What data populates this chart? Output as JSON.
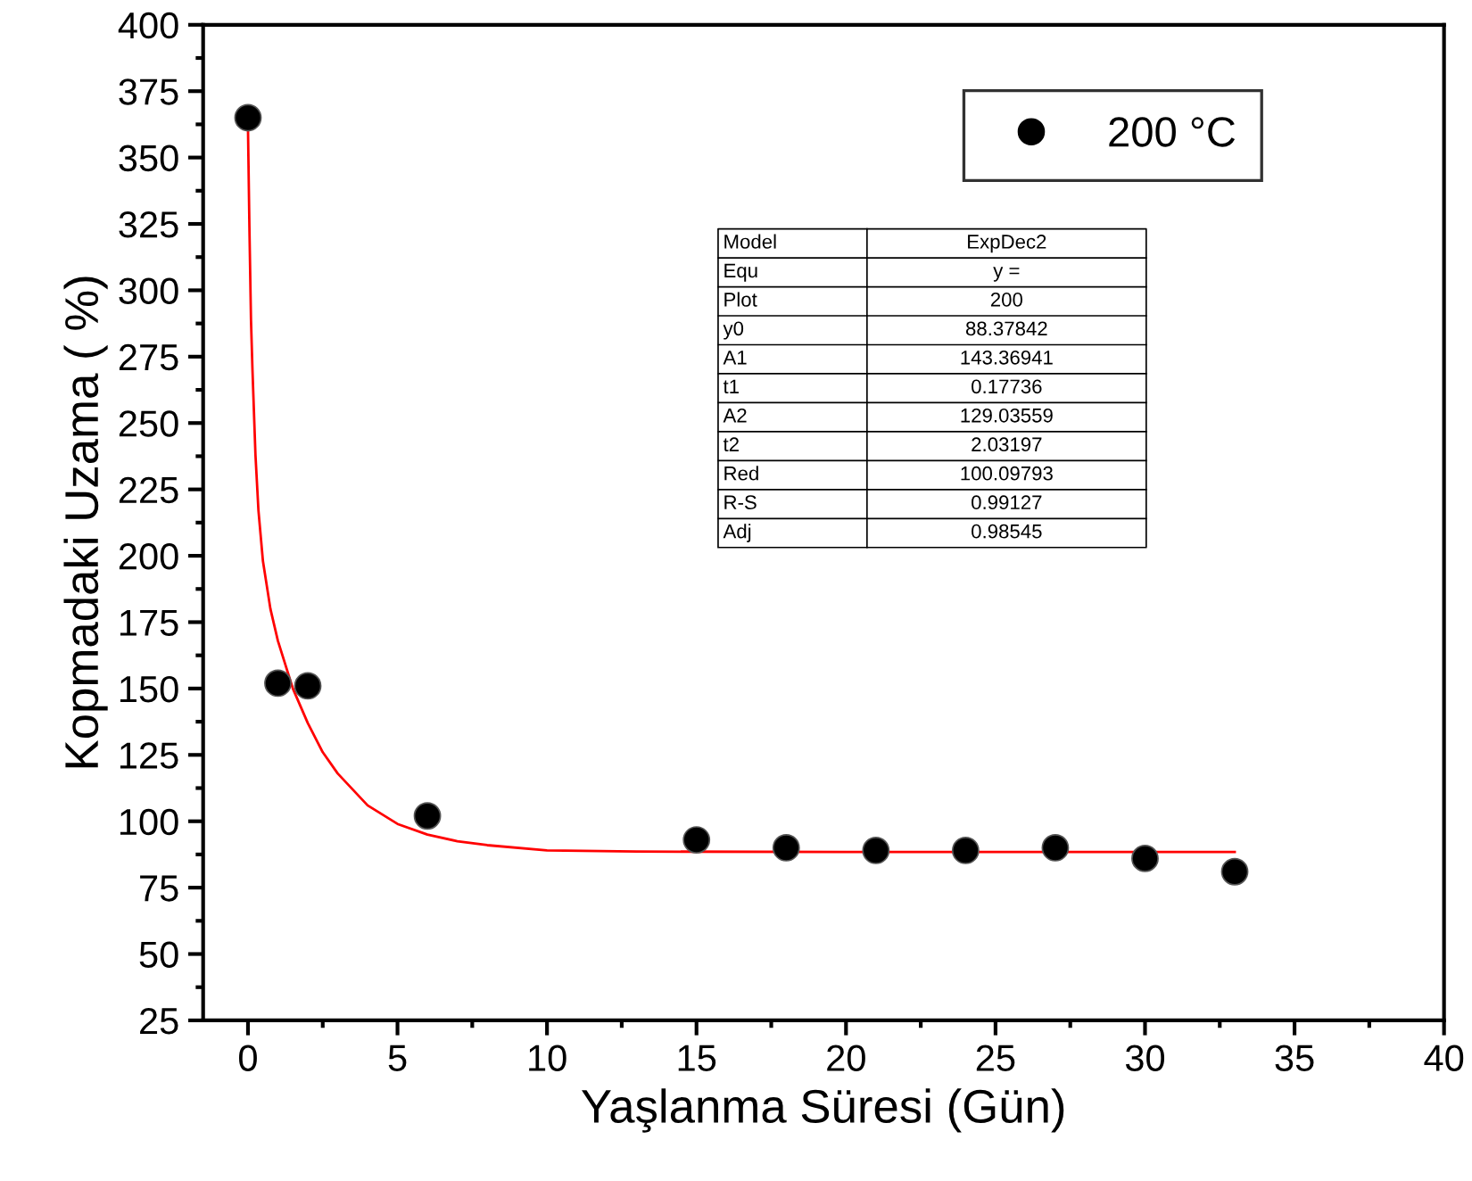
{
  "chart_data": {
    "type": "scatter",
    "xlabel": "Yaşlanma Süresi (Gün)",
    "ylabel": "Kopmadaki Uzama ( %)",
    "series": [
      {
        "name": "200 °C",
        "color": "#000000",
        "marker": "circle",
        "x": [
          0,
          1,
          2,
          6,
          15,
          18,
          21,
          24,
          27,
          30,
          33
        ],
        "values": [
          365,
          152,
          151,
          102,
          93,
          90,
          89,
          89,
          90,
          86,
          81
        ]
      },
      {
        "type": "line",
        "color": "#ff0000",
        "marker": "none",
        "line_style": "solid",
        "x": [
          0,
          0.05,
          0.1,
          0.15,
          0.25,
          0.35,
          0.5,
          0.75,
          1,
          1.5,
          2,
          2.5,
          3,
          4,
          5,
          6,
          7,
          8,
          10,
          13,
          20,
          33
        ],
        "values": [
          361,
          322,
          289,
          270,
          238,
          217,
          198,
          180,
          168,
          150,
          137,
          126,
          118,
          106,
          99,
          95,
          92.5,
          91,
          89,
          88.6,
          88.4,
          88.4
        ]
      }
    ],
    "xlim": [
      -1.5,
      40
    ],
    "xticks": [
      0,
      5,
      10,
      15,
      20,
      25,
      30,
      35,
      40
    ],
    "ylim": [
      25,
      400
    ],
    "yticks": [
      25,
      50,
      75,
      100,
      125,
      150,
      175,
      200,
      225,
      250,
      275,
      300,
      325,
      350,
      375,
      400
    ],
    "grid": false,
    "legend": "top right",
    "annotations": [
      "Model",
      "ExpDec2",
      "Equ",
      "y =",
      "Plot",
      "200",
      "y0",
      "88.37842",
      "A1",
      "143.36941",
      "t1",
      "0.17736",
      "A2",
      "129.03559",
      "t2",
      "2.03197",
      "Red",
      "100.09793",
      "R-S",
      "0.99127",
      "Adj",
      "0.98545"
    ]
  }
}
